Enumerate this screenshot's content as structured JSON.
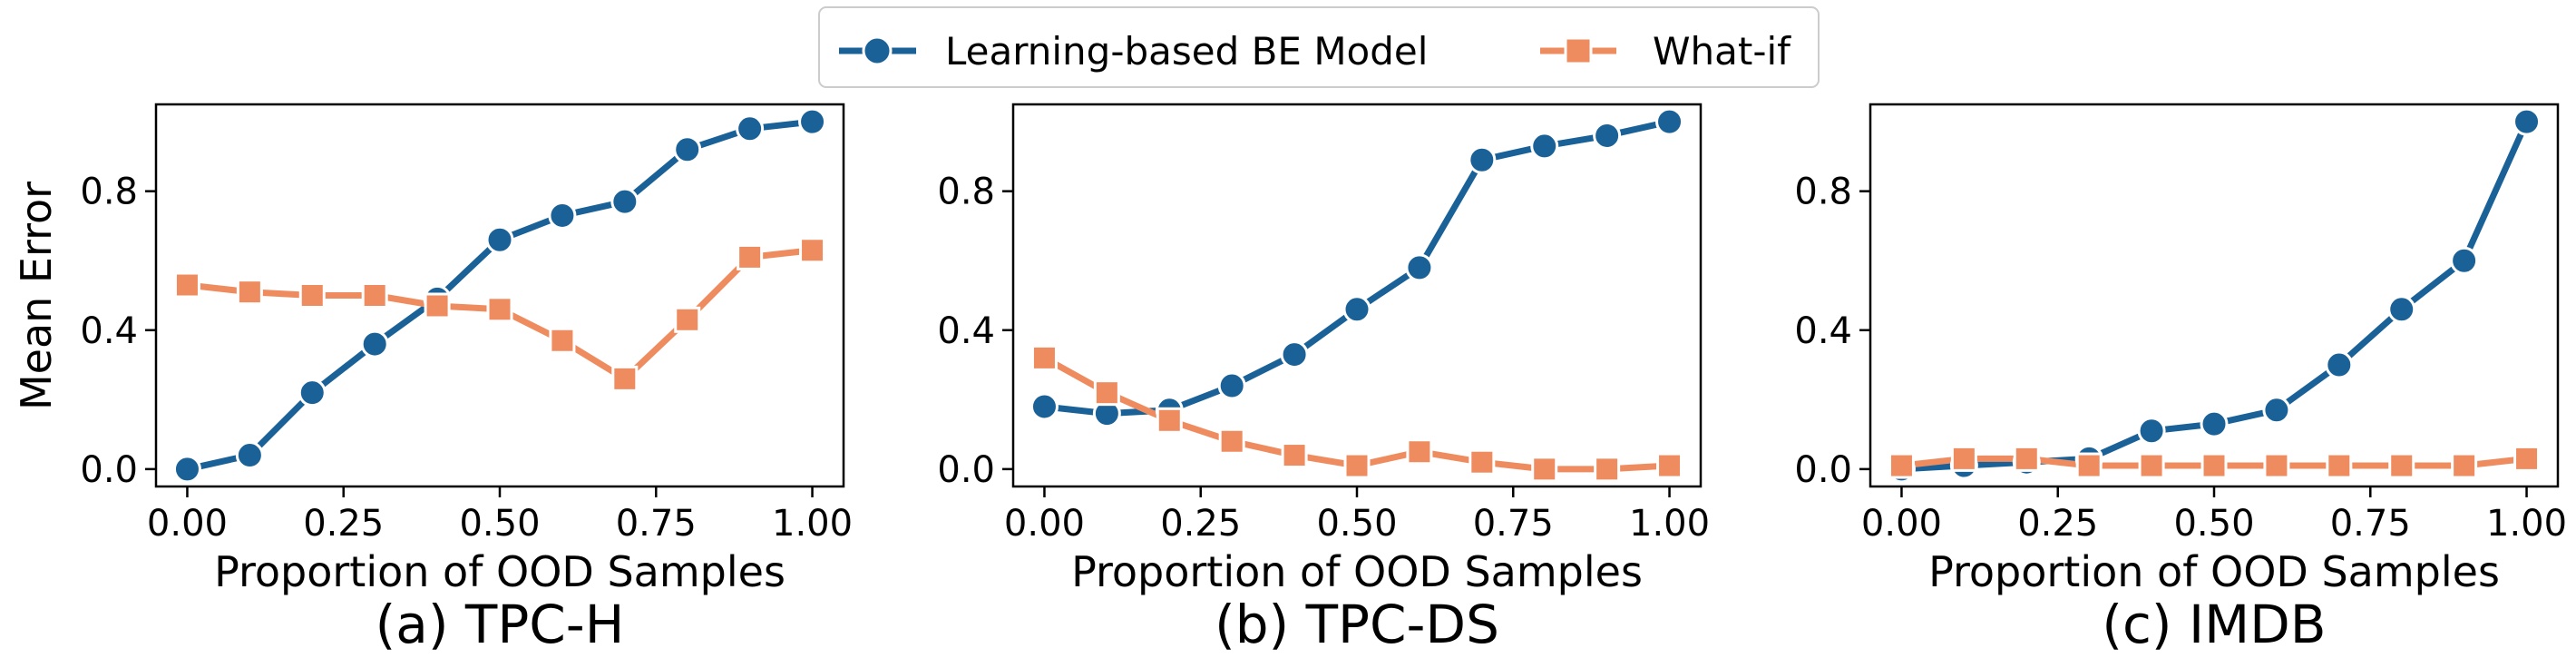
{
  "legend": {
    "entries": [
      {
        "name": "Learning-based BE Model",
        "color": "#1a6198",
        "marker": "circle"
      },
      {
        "name": "What-if",
        "color": "#ef8c5f",
        "marker": "square"
      }
    ]
  },
  "chart_data": [
    {
      "type": "line",
      "caption": "(a) TPC-H",
      "xlabel": "Proportion of OOD Samples",
      "ylabel": "Mean Error",
      "xlim": [
        -0.05,
        1.05
      ],
      "ylim": [
        -0.05,
        1.05
      ],
      "xticks": [
        0.0,
        0.25,
        0.5,
        0.75,
        1.0
      ],
      "xtick_labels": [
        "0.00",
        "0.25",
        "0.50",
        "0.75",
        "1.00"
      ],
      "yticks": [
        0.0,
        0.4,
        0.8
      ],
      "ytick_labels": [
        "0.0",
        "0.4",
        "0.8"
      ],
      "x": [
        0.0,
        0.1,
        0.2,
        0.3,
        0.4,
        0.5,
        0.6,
        0.7,
        0.8,
        0.9,
        1.0
      ],
      "series": [
        {
          "name": "Learning-based BE Model",
          "values": [
            0.0,
            0.04,
            0.22,
            0.36,
            0.49,
            0.66,
            0.73,
            0.77,
            0.92,
            0.98,
            1.0
          ]
        },
        {
          "name": "What-if",
          "values": [
            0.53,
            0.51,
            0.5,
            0.5,
            0.47,
            0.46,
            0.37,
            0.26,
            0.43,
            0.61,
            0.63
          ]
        }
      ]
    },
    {
      "type": "line",
      "caption": "(b) TPC-DS",
      "xlabel": "Proportion of OOD Samples",
      "ylabel": "",
      "xlim": [
        -0.05,
        1.05
      ],
      "ylim": [
        -0.05,
        1.05
      ],
      "xticks": [
        0.0,
        0.25,
        0.5,
        0.75,
        1.0
      ],
      "xtick_labels": [
        "0.00",
        "0.25",
        "0.50",
        "0.75",
        "1.00"
      ],
      "yticks": [
        0.0,
        0.4,
        0.8
      ],
      "ytick_labels": [
        "0.0",
        "0.4",
        "0.8"
      ],
      "x": [
        0.0,
        0.1,
        0.2,
        0.3,
        0.4,
        0.5,
        0.6,
        0.7,
        0.8,
        0.9,
        1.0
      ],
      "series": [
        {
          "name": "Learning-based BE Model",
          "values": [
            0.18,
            0.16,
            0.17,
            0.24,
            0.33,
            0.46,
            0.58,
            0.89,
            0.93,
            0.96,
            1.0
          ]
        },
        {
          "name": "What-if",
          "values": [
            0.32,
            0.22,
            0.14,
            0.08,
            0.04,
            0.01,
            0.05,
            0.02,
            0.0,
            0.0,
            0.01
          ]
        }
      ]
    },
    {
      "type": "line",
      "caption": "(c) IMDB",
      "xlabel": "Proportion of OOD Samples",
      "ylabel": "",
      "xlim": [
        -0.05,
        1.05
      ],
      "ylim": [
        -0.05,
        1.05
      ],
      "xticks": [
        0.0,
        0.25,
        0.5,
        0.75,
        1.0
      ],
      "xtick_labels": [
        "0.00",
        "0.25",
        "0.50",
        "0.75",
        "1.00"
      ],
      "yticks": [
        0.0,
        0.4,
        0.8
      ],
      "ytick_labels": [
        "0.0",
        "0.4",
        "0.8"
      ],
      "x": [
        0.0,
        0.1,
        0.2,
        0.3,
        0.4,
        0.5,
        0.6,
        0.7,
        0.8,
        0.9,
        1.0
      ],
      "series": [
        {
          "name": "Learning-based BE Model",
          "values": [
            0.0,
            0.01,
            0.02,
            0.03,
            0.11,
            0.13,
            0.17,
            0.3,
            0.46,
            0.6,
            1.0
          ]
        },
        {
          "name": "What-if",
          "values": [
            0.01,
            0.03,
            0.03,
            0.01,
            0.01,
            0.01,
            0.01,
            0.01,
            0.01,
            0.01,
            0.03
          ]
        }
      ]
    }
  ]
}
